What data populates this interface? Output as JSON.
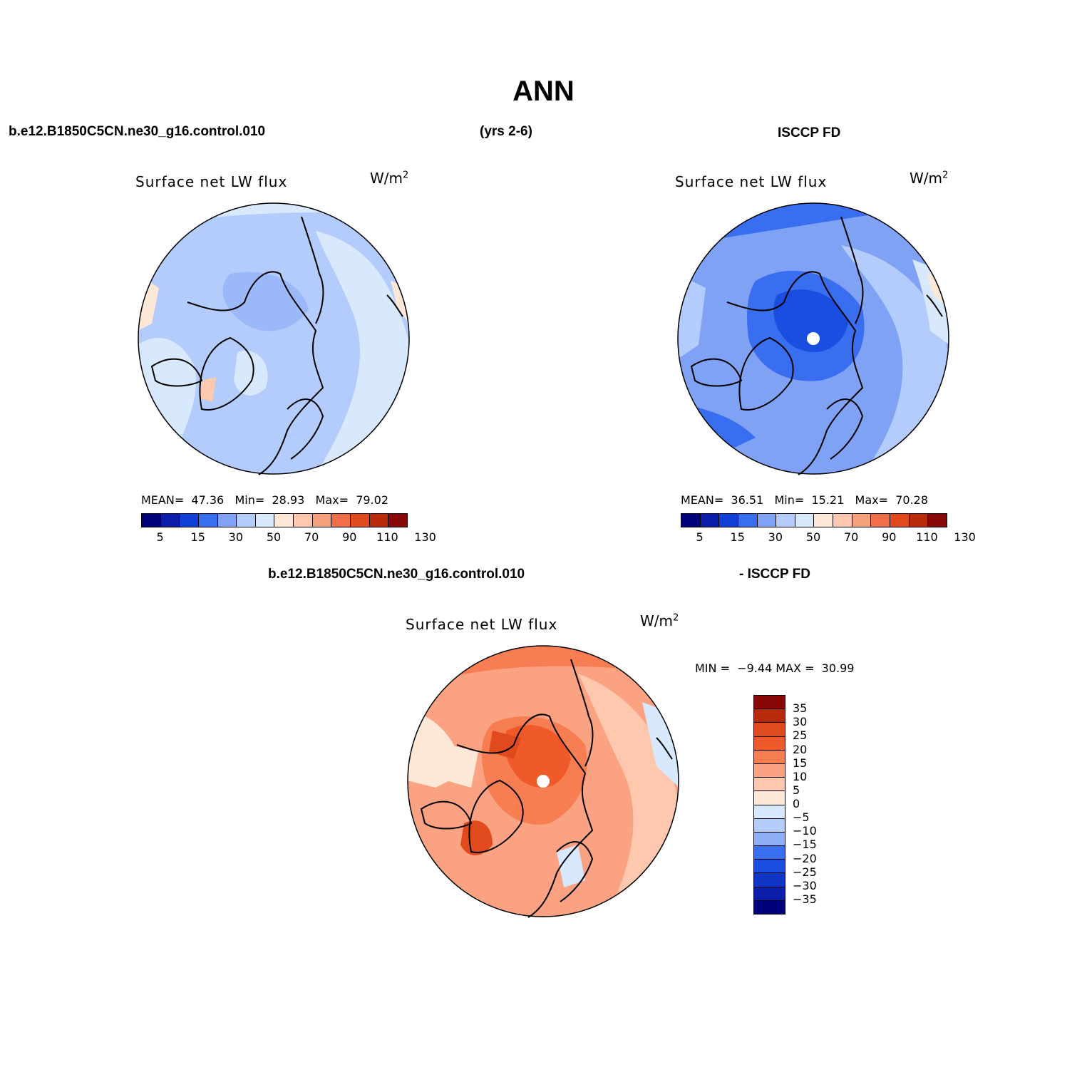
{
  "title": "ANN",
  "header": {
    "case_name": "b.e12.B1850C5CN.ne30_g16.control.010",
    "years": "(yrs 2-6)",
    "obs_name": "ISCCP FD"
  },
  "colors": {
    "mean_palette": [
      "#00007a",
      "#0a1eaa",
      "#1040d8",
      "#3a6ef0",
      "#7fa2f5",
      "#b4ccfb",
      "#d8e8fd",
      "#fde8d8",
      "#fdc8ae",
      "#f7a07c",
      "#f06e48",
      "#e04a1c",
      "#b82a0a",
      "#880808"
    ],
    "diff_palette": [
      "#880808",
      "#b82a0a",
      "#e04a1c",
      "#f05a2a",
      "#f77e52",
      "#fba282",
      "#fdc8ae",
      "#fde8d8",
      "#d8e8fd",
      "#b4ccfb",
      "#90b0f6",
      "#3a6ef0",
      "#1a4ee0",
      "#1036c8",
      "#0a1eaa",
      "#00007a"
    ]
  },
  "panels": [
    {
      "title": "Surface net LW flux",
      "units": "W/m",
      "units_sup": "2",
      "stats": {
        "mean_label": "MEAN=",
        "mean": "47.36",
        "min_label": "Min=",
        "min": "28.93",
        "max_label": "Max=",
        "max": "79.02"
      },
      "colorbar_ticks": [
        "5",
        "15",
        "30",
        "50",
        "70",
        "90",
        "110",
        "130"
      ]
    },
    {
      "title": "Surface net LW flux",
      "units": "W/m",
      "units_sup": "2",
      "stats": {
        "mean_label": "MEAN=",
        "mean": "36.51",
        "min_label": "Min=",
        "min": "15.21",
        "max_label": "Max=",
        "max": "70.28"
      },
      "colorbar_ticks": [
        "5",
        "15",
        "30",
        "50",
        "70",
        "90",
        "110",
        "130"
      ]
    }
  ],
  "diff": {
    "case_label": "b.e12.B1850C5CN.ne30_g16.control.010",
    "obs_label": "- ISCCP FD",
    "title": "Surface net LW flux",
    "units": "W/m",
    "units_sup": "2",
    "min_label": "MIN =",
    "min": "−9.44",
    "max_label": "MAX =",
    "max": "30.99",
    "colorbar_labels": [
      "35",
      "30",
      "25",
      "20",
      "15",
      "10",
      "5",
      "0",
      "−5",
      "−10",
      "−15",
      "−20",
      "−25",
      "−30",
      "−35"
    ]
  }
}
